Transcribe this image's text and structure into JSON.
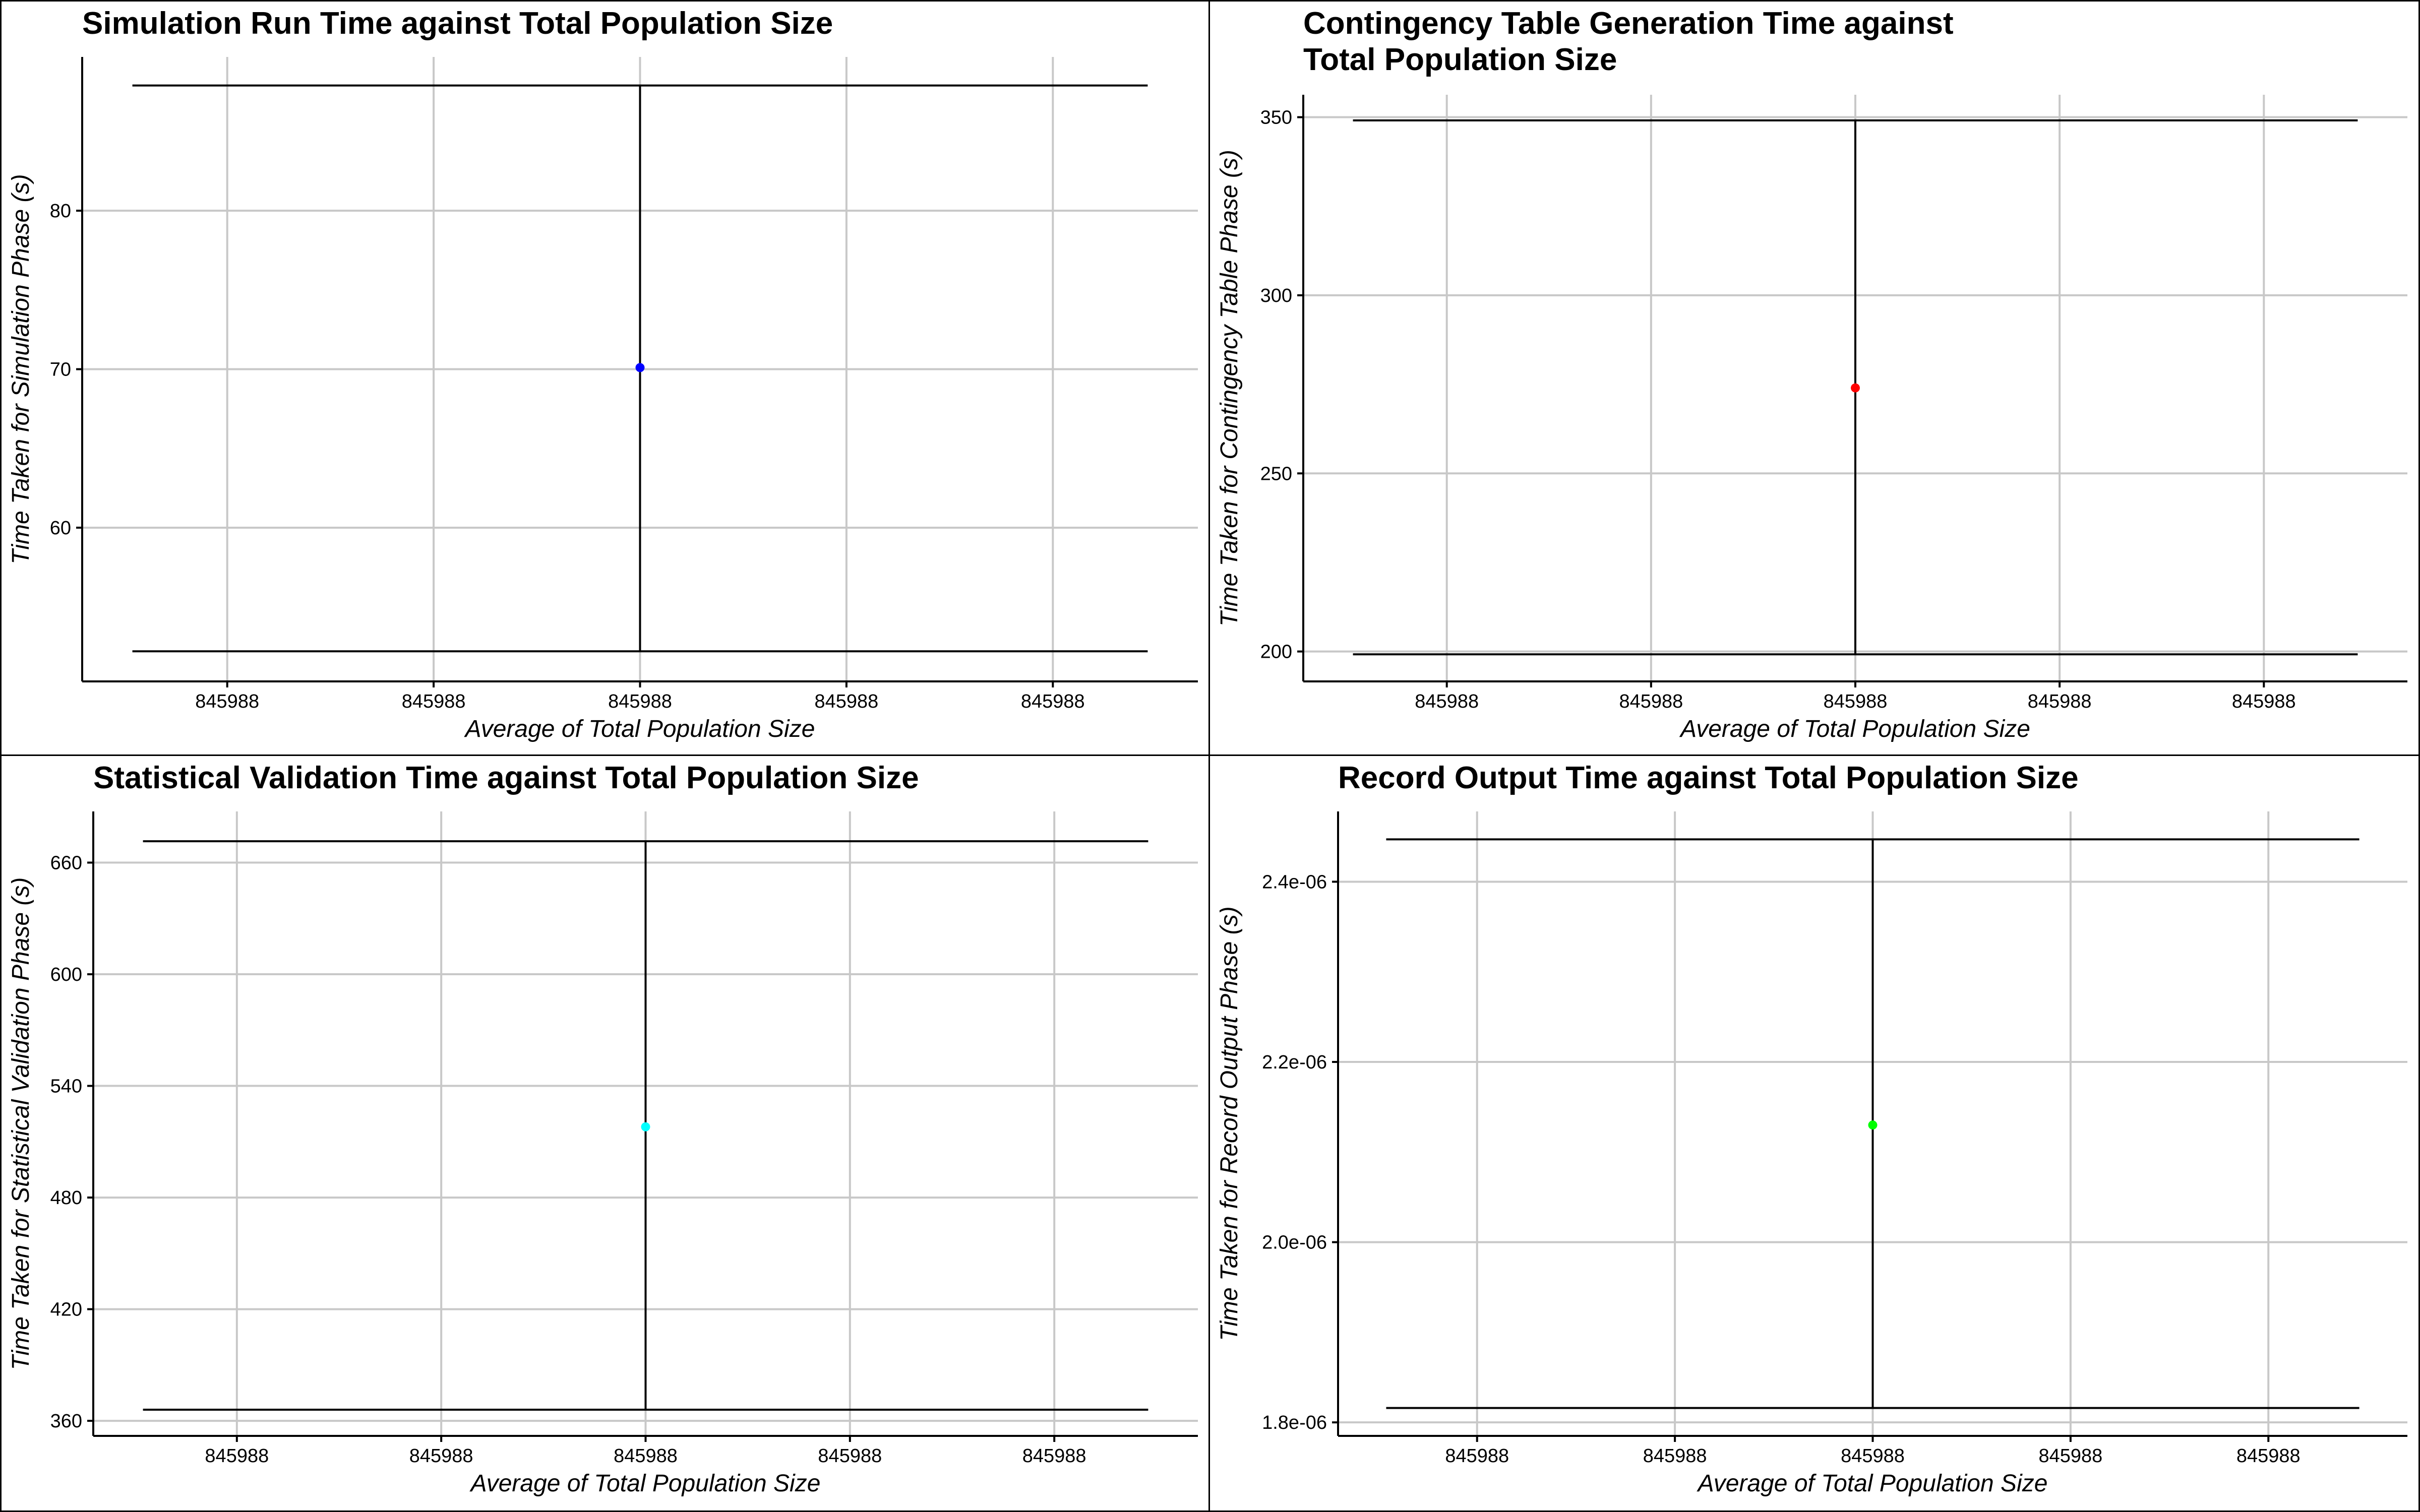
{
  "chart_data": [
    {
      "type": "scatter",
      "title": "Simulation Run Time against Total Population Size",
      "xlabel": "Average of Total Population Size",
      "ylabel": "Time Taken for Simulation Phase (s)",
      "x_ticks": [
        "845988",
        "845988",
        "845988",
        "845988",
        "845988"
      ],
      "y_ticks": [
        {
          "value": 60,
          "label": "60"
        },
        {
          "value": 70,
          "label": "70"
        },
        {
          "value": 80,
          "label": "80"
        }
      ],
      "ylim": [
        50.3,
        89.7
      ],
      "grid": true,
      "points": [
        {
          "x": "845988",
          "y": 70.1,
          "ymin": 52.2,
          "ymax": 87.9,
          "color": "#0000ff"
        }
      ]
    },
    {
      "type": "scatter",
      "title": "Contingency Table Generation Time against\n Total Population Size",
      "xlabel": "Average of Total Population Size",
      "ylabel": "Time Taken for Contingency Table Phase (s)",
      "x_ticks": [
        "845988",
        "845988",
        "845988",
        "845988",
        "845988"
      ],
      "y_ticks": [
        {
          "value": 200,
          "label": "200"
        },
        {
          "value": 250,
          "label": "250"
        },
        {
          "value": 300,
          "label": "300"
        },
        {
          "value": 350,
          "label": "350"
        }
      ],
      "ylim": [
        191.6,
        356.3
      ],
      "grid": true,
      "points": [
        {
          "x": "845988",
          "y": 274,
          "ymin": 199.2,
          "ymax": 349.1,
          "color": "#ff0000"
        }
      ]
    },
    {
      "type": "scatter",
      "title": "Statistical Validation Time against Total Population Size",
      "xlabel": "Average of Total Population Size",
      "ylabel": "Time Taken for Statistical Validation Phase (s)",
      "x_ticks": [
        "845988",
        "845988",
        "845988",
        "845988",
        "845988"
      ],
      "y_ticks": [
        {
          "value": 360,
          "label": "360"
        },
        {
          "value": 420,
          "label": "420"
        },
        {
          "value": 480,
          "label": "480"
        },
        {
          "value": 540,
          "label": "540"
        },
        {
          "value": 600,
          "label": "600"
        },
        {
          "value": 660,
          "label": "660"
        }
      ],
      "ylim": [
        351.9,
        687.5
      ],
      "grid": true,
      "points": [
        {
          "x": "845988",
          "y": 518,
          "ymin": 366,
          "ymax": 671.5,
          "color": "#00ffff"
        }
      ]
    },
    {
      "type": "scatter",
      "title": "Record Output Time against Total Population Size",
      "xlabel": "Average of Total Population Size",
      "ylabel": "Time Taken for Record Output Phase (s)",
      "x_ticks": [
        "845988",
        "845988",
        "845988",
        "845988",
        "845988"
      ],
      "y_ticks": [
        {
          "value": 1.8e-06,
          "label": "1.8e-06"
        },
        {
          "value": 2e-06,
          "label": "2.0e-06"
        },
        {
          "value": 2.2e-06,
          "label": "2.2e-06"
        },
        {
          "value": 2.4e-06,
          "label": "2.4e-06"
        }
      ],
      "ylim": [
        1.785e-06,
        2.478e-06
      ],
      "grid": true,
      "points": [
        {
          "x": "845988",
          "y": 2.13e-06,
          "ymin": 1.816e-06,
          "ymax": 2.447e-06,
          "color": "#00ff00"
        }
      ]
    }
  ]
}
